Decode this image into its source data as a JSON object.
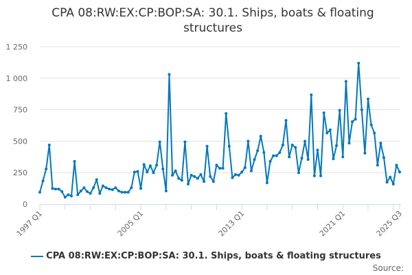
{
  "chart_data": {
    "type": "line",
    "title": "CPA 08:RW:EX:CP:BOP:SA: 30.1. Ships, boats & floating structures",
    "xlabel": "",
    "ylabel": "",
    "ylim": [
      0,
      1250
    ],
    "yticks": [
      0,
      250,
      500,
      750,
      1000,
      1250
    ],
    "ytick_labels": [
      "0",
      "250",
      "500",
      "750",
      "1 000",
      "1 250"
    ],
    "x_start": "1997 Q1",
    "x_end": "2025 Q3",
    "xtick_labels": [
      "1997 Q1",
      "2005 Q1",
      "2013 Q1",
      "2021 Q1",
      "2025 Q3"
    ],
    "grid": true,
    "legend_position": "bottom",
    "series": [
      {
        "name": "CPA 08:RW:EX:CP:BOP:SA: 30.1. Ships, boats & floating structures",
        "color": "#0077bb",
        "values": [
          95,
          185,
          280,
          470,
          125,
          120,
          120,
          100,
          55,
          75,
          65,
          340,
          75,
          105,
          130,
          100,
          85,
          130,
          195,
          85,
          145,
          130,
          120,
          115,
          130,
          105,
          95,
          95,
          95,
          130,
          255,
          260,
          125,
          315,
          255,
          305,
          250,
          310,
          495,
          280,
          105,
          1030,
          230,
          265,
          205,
          190,
          495,
          160,
          230,
          220,
          205,
          235,
          180,
          460,
          220,
          180,
          310,
          285,
          285,
          720,
          460,
          210,
          235,
          230,
          255,
          290,
          500,
          265,
          355,
          425,
          540,
          410,
          170,
          340,
          385,
          385,
          410,
          470,
          665,
          375,
          470,
          450,
          250,
          365,
          500,
          355,
          868,
          225,
          430,
          225,
          725,
          565,
          590,
          360,
          465,
          745,
          375,
          975,
          485,
          655,
          675,
          1120,
          750,
          405,
          835,
          630,
          565,
          310,
          485,
          370,
          175,
          215,
          160,
          310,
          255
        ]
      }
    ]
  },
  "source_label": "Source:"
}
